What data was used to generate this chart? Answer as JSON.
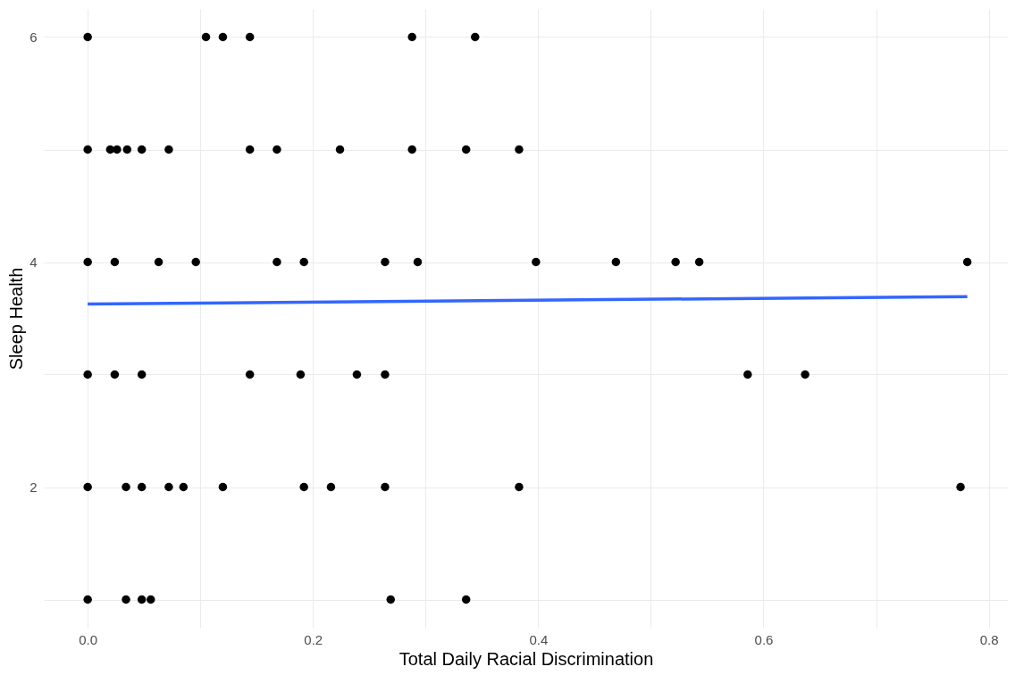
{
  "chart_data": {
    "type": "scatter",
    "xlabel": "Total Daily Racial Discrimination",
    "ylabel": "Sleep Health",
    "xlim": [
      -0.039,
      0.817
    ],
    "ylim": [
      0.75,
      6.25
    ],
    "xticks": [
      {
        "value": 0,
        "label": "0.0"
      },
      {
        "value": 0.1,
        "label": null
      },
      {
        "value": 0.2,
        "label": "0.2"
      },
      {
        "value": 0.3,
        "label": null
      },
      {
        "value": 0.4,
        "label": "0.4"
      },
      {
        "value": 0.5,
        "label": null
      },
      {
        "value": 0.6,
        "label": "0.6"
      },
      {
        "value": 0.7,
        "label": null
      },
      {
        "value": 0.8,
        "label": "0.8"
      }
    ],
    "yticks": [
      {
        "value": 1,
        "label": null
      },
      2,
      {
        "value": 3,
        "label": null
      },
      4,
      {
        "value": 5,
        "label": null
      },
      6
    ],
    "grid": true,
    "series": [
      {
        "type": "scatter",
        "marker": "circle",
        "color": "#000000",
        "x": [
          0,
          0.105,
          0.12,
          0.144,
          0.288,
          0.344,
          0,
          0.02,
          0.026,
          0.035,
          0.048,
          0.072,
          0.144,
          0.168,
          0.224,
          0.288,
          0.336,
          0.383,
          0,
          0.024,
          0.063,
          0.096,
          0.168,
          0.192,
          0.264,
          0.293,
          0.398,
          0.469,
          0.522,
          0.543,
          0.781,
          0,
          0.024,
          0.048,
          0.144,
          0.189,
          0.239,
          0.264,
          0.586,
          0.637,
          0,
          0.034,
          0.048,
          0.072,
          0.085,
          0.12,
          0.192,
          0.216,
          0.264,
          0.383,
          0.775,
          0,
          0.034,
          0.048,
          0.056,
          0.269,
          0.336
        ],
        "values": [
          6,
          6,
          6,
          6,
          6,
          6,
          5,
          5,
          5,
          5,
          5,
          5,
          5,
          5,
          5,
          5,
          5,
          5,
          4,
          4,
          4,
          4,
          4,
          4,
          4,
          4,
          4,
          4,
          4,
          4,
          4,
          3,
          3,
          3,
          3,
          3,
          3,
          3,
          3,
          3,
          2,
          2,
          2,
          2,
          2,
          2,
          2,
          2,
          2,
          2,
          2,
          1,
          1,
          1,
          1,
          1,
          1
        ]
      },
      {
        "type": "line",
        "color": "#3366ff",
        "x": [
          0,
          0.781
        ],
        "values": [
          3.627,
          3.693
        ]
      }
    ]
  }
}
